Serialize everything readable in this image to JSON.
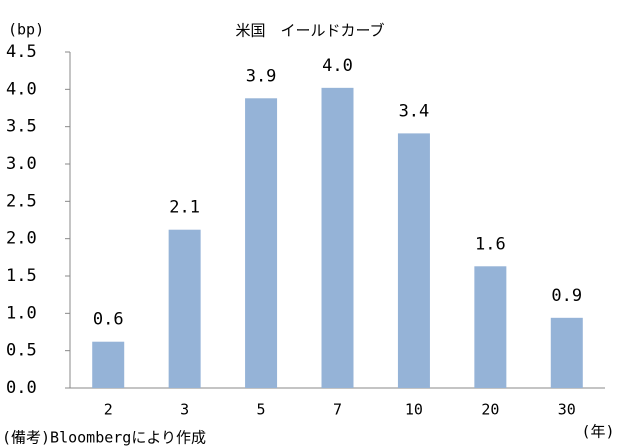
{
  "chart_data": {
    "type": "bar",
    "title": "米国　イールドカーブ",
    "y_label": "(bp)",
    "x_label": "(年)",
    "note": "(備考)Bloombergにより作成",
    "categories": [
      "2",
      "3",
      "5",
      "7",
      "10",
      "20",
      "30"
    ],
    "values": [
      0.62,
      2.12,
      3.88,
      4.02,
      3.41,
      1.63,
      0.94
    ],
    "value_labels": [
      "0.6",
      "2.1",
      "3.9",
      "4.0",
      "3.4",
      "1.6",
      "0.9"
    ],
    "color": "#95b3d7",
    "ylim": [
      0,
      4.5
    ],
    "yticks": [
      {
        "value": 0,
        "label": "0.0"
      },
      {
        "value": 0.5,
        "label": "0.5"
      },
      {
        "value": 1,
        "label": "1.0"
      },
      {
        "value": 1.5,
        "label": "1.5"
      },
      {
        "value": 2,
        "label": "2.0"
      },
      {
        "value": 2.5,
        "label": "2.5"
      },
      {
        "value": 3,
        "label": "3.0"
      },
      {
        "value": 3.5,
        "label": "3.5"
      },
      {
        "value": 4,
        "label": "4.0"
      },
      {
        "value": 4.5,
        "label": "4.5"
      }
    ],
    "grid": false
  }
}
